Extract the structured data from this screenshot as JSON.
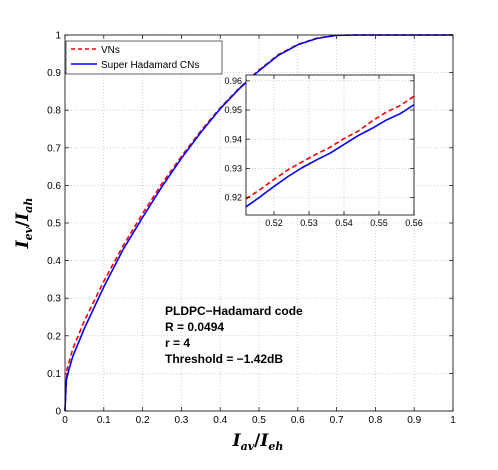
{
  "chart_data": {
    "type": "line",
    "xlabel": {
      "main": "I",
      "sub1": "av",
      "slash": "/",
      "main2": "I",
      "sub2": "eh"
    },
    "ylabel": {
      "main": "I",
      "sub1": "ev",
      "slash": "/",
      "main2": "I",
      "sub2": "ah"
    },
    "xlim": [
      0,
      1
    ],
    "ylim": [
      0,
      1
    ],
    "xticks": [
      "0",
      "0.1",
      "0.2",
      "0.3",
      "0.4",
      "0.5",
      "0.6",
      "0.7",
      "0.8",
      "0.9",
      "1"
    ],
    "yticks": [
      "0",
      "0.1",
      "0.2",
      "0.3",
      "0.4",
      "0.5",
      "0.6",
      "0.7",
      "0.8",
      "0.9",
      "1"
    ],
    "grid": true,
    "legend_position": "top-left",
    "series": [
      {
        "name": "VNs",
        "color": "#ff0000",
        "style": "dashed",
        "x": [
          0.0,
          0.005,
          0.02,
          0.05,
          0.1,
          0.15,
          0.2,
          0.25,
          0.3,
          0.35,
          0.4,
          0.45,
          0.5,
          0.55,
          0.6,
          0.65,
          0.7,
          0.75,
          0.8,
          0.9,
          1.0
        ],
        "y": [
          0.0,
          0.11,
          0.165,
          0.24,
          0.345,
          0.44,
          0.525,
          0.605,
          0.677,
          0.745,
          0.806,
          0.86,
          0.907,
          0.948,
          0.975,
          0.992,
          0.999,
          1.0,
          1.0,
          1.0,
          1.0
        ]
      },
      {
        "name": "Super Hadamard CNs",
        "color": "#0000ff",
        "style": "solid",
        "x": [
          0.0,
          0.003,
          0.01,
          0.02,
          0.05,
          0.1,
          0.15,
          0.2,
          0.25,
          0.3,
          0.35,
          0.4,
          0.45,
          0.5,
          0.55,
          0.6,
          0.65,
          0.7,
          0.75,
          0.8,
          0.9,
          1.0
        ],
        "y": [
          0.0,
          0.08,
          0.11,
          0.145,
          0.22,
          0.33,
          0.43,
          0.515,
          0.597,
          0.672,
          0.741,
          0.804,
          0.858,
          0.905,
          0.946,
          0.974,
          0.991,
          0.999,
          1.0,
          1.0,
          1.0,
          1.0
        ]
      }
    ],
    "inset": {
      "xlim": [
        0.512,
        0.56
      ],
      "ylim": [
        0.914,
        0.962
      ],
      "xticks": [
        "0.52",
        "0.53",
        "0.54",
        "0.55",
        "0.56"
      ],
      "yticks": [
        "0.92",
        "0.93",
        "0.94",
        "0.95",
        "0.96"
      ],
      "grid": true,
      "series": [
        {
          "name": "VNs",
          "x": [
            0.512,
            0.516,
            0.52,
            0.524,
            0.528,
            0.532,
            0.536,
            0.54,
            0.544,
            0.548,
            0.552,
            0.556,
            0.56
          ],
          "y": [
            0.9195,
            0.9227,
            0.9262,
            0.9295,
            0.9322,
            0.9348,
            0.9372,
            0.9402,
            0.9427,
            0.9462,
            0.9492,
            0.9515,
            0.9547
          ]
        },
        {
          "name": "Super Hadamard CNs",
          "x": [
            0.512,
            0.516,
            0.52,
            0.524,
            0.528,
            0.532,
            0.536,
            0.54,
            0.544,
            0.548,
            0.552,
            0.556,
            0.56
          ],
          "y": [
            0.9168,
            0.9202,
            0.9238,
            0.9272,
            0.9302,
            0.9328,
            0.9352,
            0.9382,
            0.9412,
            0.9437,
            0.9465,
            0.9487,
            0.9518
          ]
        }
      ]
    },
    "annotation": [
      "PLDPC−Hadamard code",
      "R = 0.0494",
      "r = 4",
      "Threshold = −1.42dB"
    ]
  }
}
